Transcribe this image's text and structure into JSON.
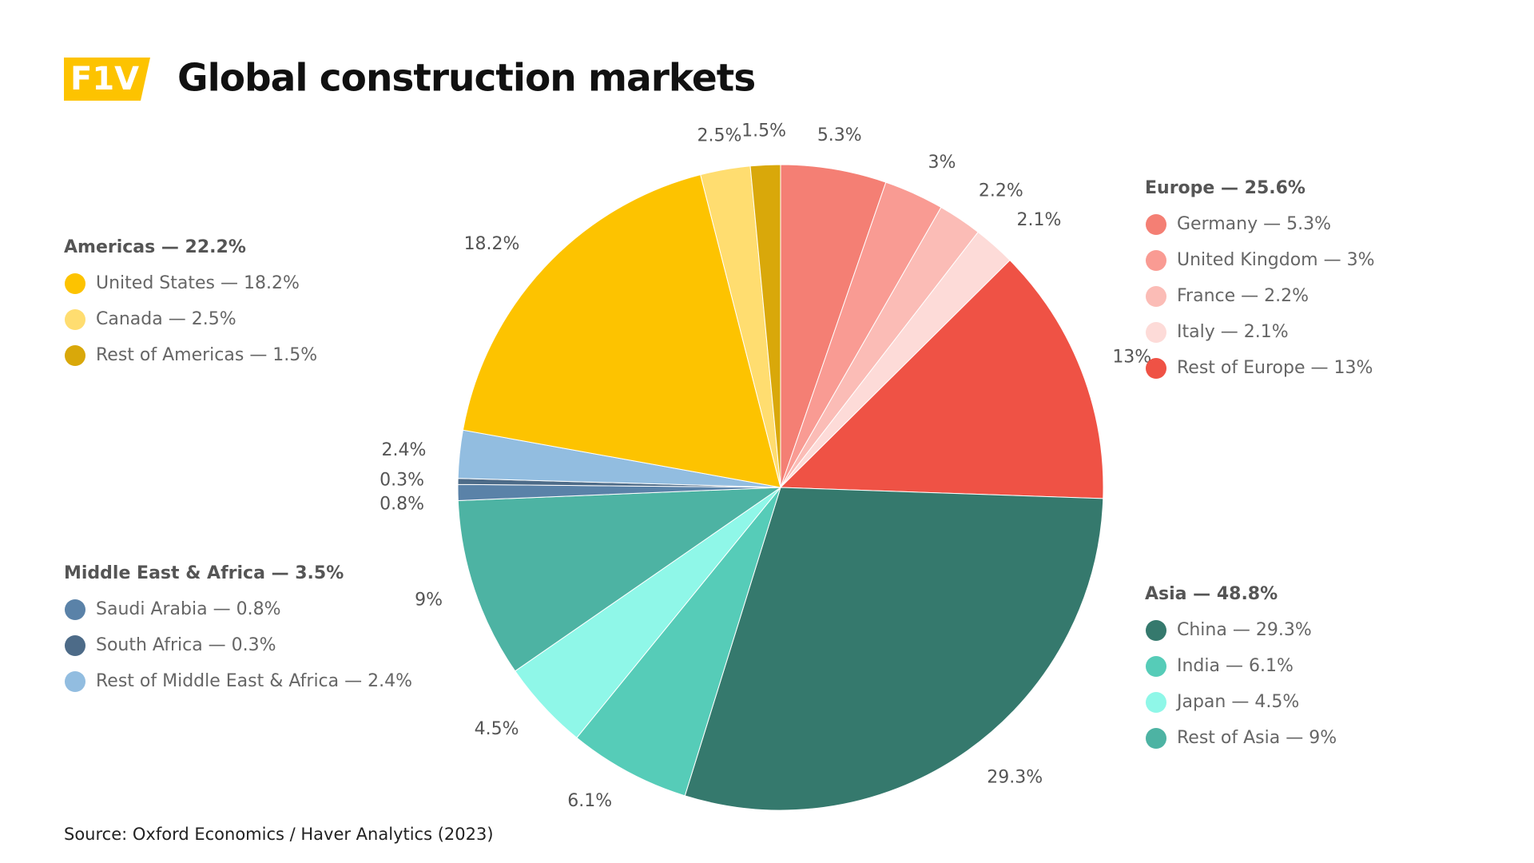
{
  "logo": "F1V",
  "chart_data": {
    "type": "pie",
    "title": "Global construction markets",
    "source": "Source: Oxford Economics / Haver Analytics (2023)",
    "groups": [
      {
        "label": "Europe — 25.6%",
        "total": 25.6,
        "categories": [
          "Germany — 5.3%",
          "United Kingdom — 3%",
          "France — 2.2%",
          "Italy — 2.1%",
          "Rest of Europe — 13%"
        ],
        "values": [
          5.3,
          3,
          2.2,
          2.1,
          13
        ],
        "value_labels": [
          "5.3%",
          "3%",
          "2.2%",
          "2.1%",
          "13%"
        ],
        "colors": [
          "#f47f74",
          "#f99b93",
          "#fbbcb6",
          "#fddbd8",
          "#ef5245"
        ]
      },
      {
        "label": "Asia — 48.8%",
        "total": 48.8,
        "categories": [
          "China — 29.3%",
          "India — 6.1%",
          "Japan — 4.5%",
          "Rest of Asia — 9%"
        ],
        "values": [
          29.3,
          6.1,
          4.5,
          9
        ],
        "value_labels": [
          "29.3%",
          "6.1%",
          "4.5%",
          "9%"
        ],
        "colors": [
          "#35796d",
          "#56ccb8",
          "#8ff7e8",
          "#4db3a3"
        ]
      },
      {
        "label": "Middle East & Africa — 3.5%",
        "total": 3.5,
        "categories": [
          "Saudi Arabia — 0.8%",
          "South Africa — 0.3%",
          "Rest of Middle East & Africa — 2.4%"
        ],
        "values": [
          0.8,
          0.3,
          2.4
        ],
        "value_labels": [
          "0.8%",
          "0.3%",
          "2.4%"
        ],
        "colors": [
          "#5a82a8",
          "#4d6b88",
          "#92bde0"
        ]
      },
      {
        "label": "Americas — 22.2%",
        "total": 22.2,
        "categories": [
          "United States — 18.2%",
          "Canada — 2.5%",
          "Rest of Americas — 1.5%"
        ],
        "values": [
          18.2,
          2.5,
          1.5
        ],
        "value_labels": [
          "18.2%",
          "2.5%",
          "1.5%"
        ],
        "colors": [
          "#fdc300",
          "#ffdd70",
          "#d9a80a"
        ]
      }
    ]
  }
}
